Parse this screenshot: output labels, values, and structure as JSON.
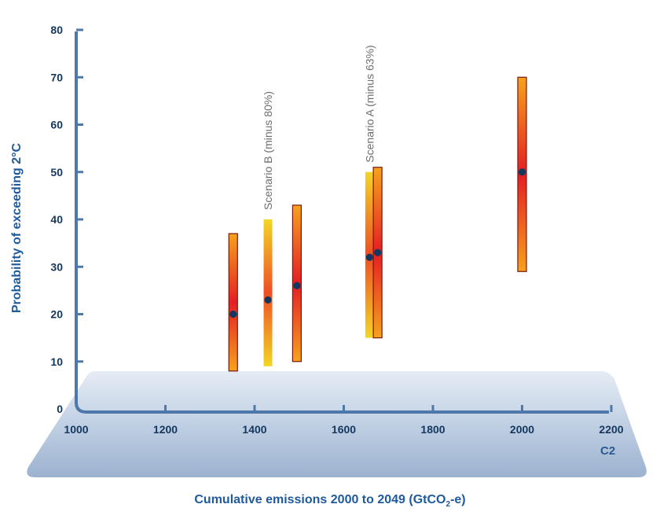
{
  "chart_data": {
    "type": "range-bar",
    "ylabel": "Probability of exceeding 2°C",
    "xlabel_main": "Cumulative emissions 2000 to 2049 (GtCO",
    "xlabel_sub": "2",
    "xlabel_tail": "-e)",
    "xlim": [
      1000,
      2200
    ],
    "ylim": [
      0,
      80
    ],
    "x_ticks": [
      1000,
      1200,
      1400,
      1600,
      1800,
      2000,
      2200
    ],
    "y_ticks": [
      0,
      10,
      20,
      30,
      40,
      50,
      60,
      70,
      80
    ],
    "ranges": [
      {
        "x": 1352,
        "low": 8,
        "high": 37,
        "point": 20,
        "style": "red"
      },
      {
        "x": 1430,
        "low": 9,
        "high": 40,
        "point": 23,
        "style": "yellow"
      },
      {
        "x": 1495,
        "low": 10,
        "high": 43,
        "point": 26,
        "style": "red"
      },
      {
        "x": 1658,
        "low": 15,
        "high": 50,
        "point": 32,
        "style": "yellow"
      },
      {
        "x": 1676,
        "low": 15,
        "high": 51,
        "point": 33,
        "style": "red"
      },
      {
        "x": 2000,
        "low": 29,
        "high": 70,
        "point": 50,
        "style": "red"
      }
    ],
    "annotations": [
      {
        "text": "Scenario B (minus 80%)",
        "x": 1430,
        "anchor_y": 42
      },
      {
        "text": "Scenario A (minus 63%)",
        "x": 1658,
        "anchor_y": 52
      }
    ],
    "logo_text": "C2"
  }
}
